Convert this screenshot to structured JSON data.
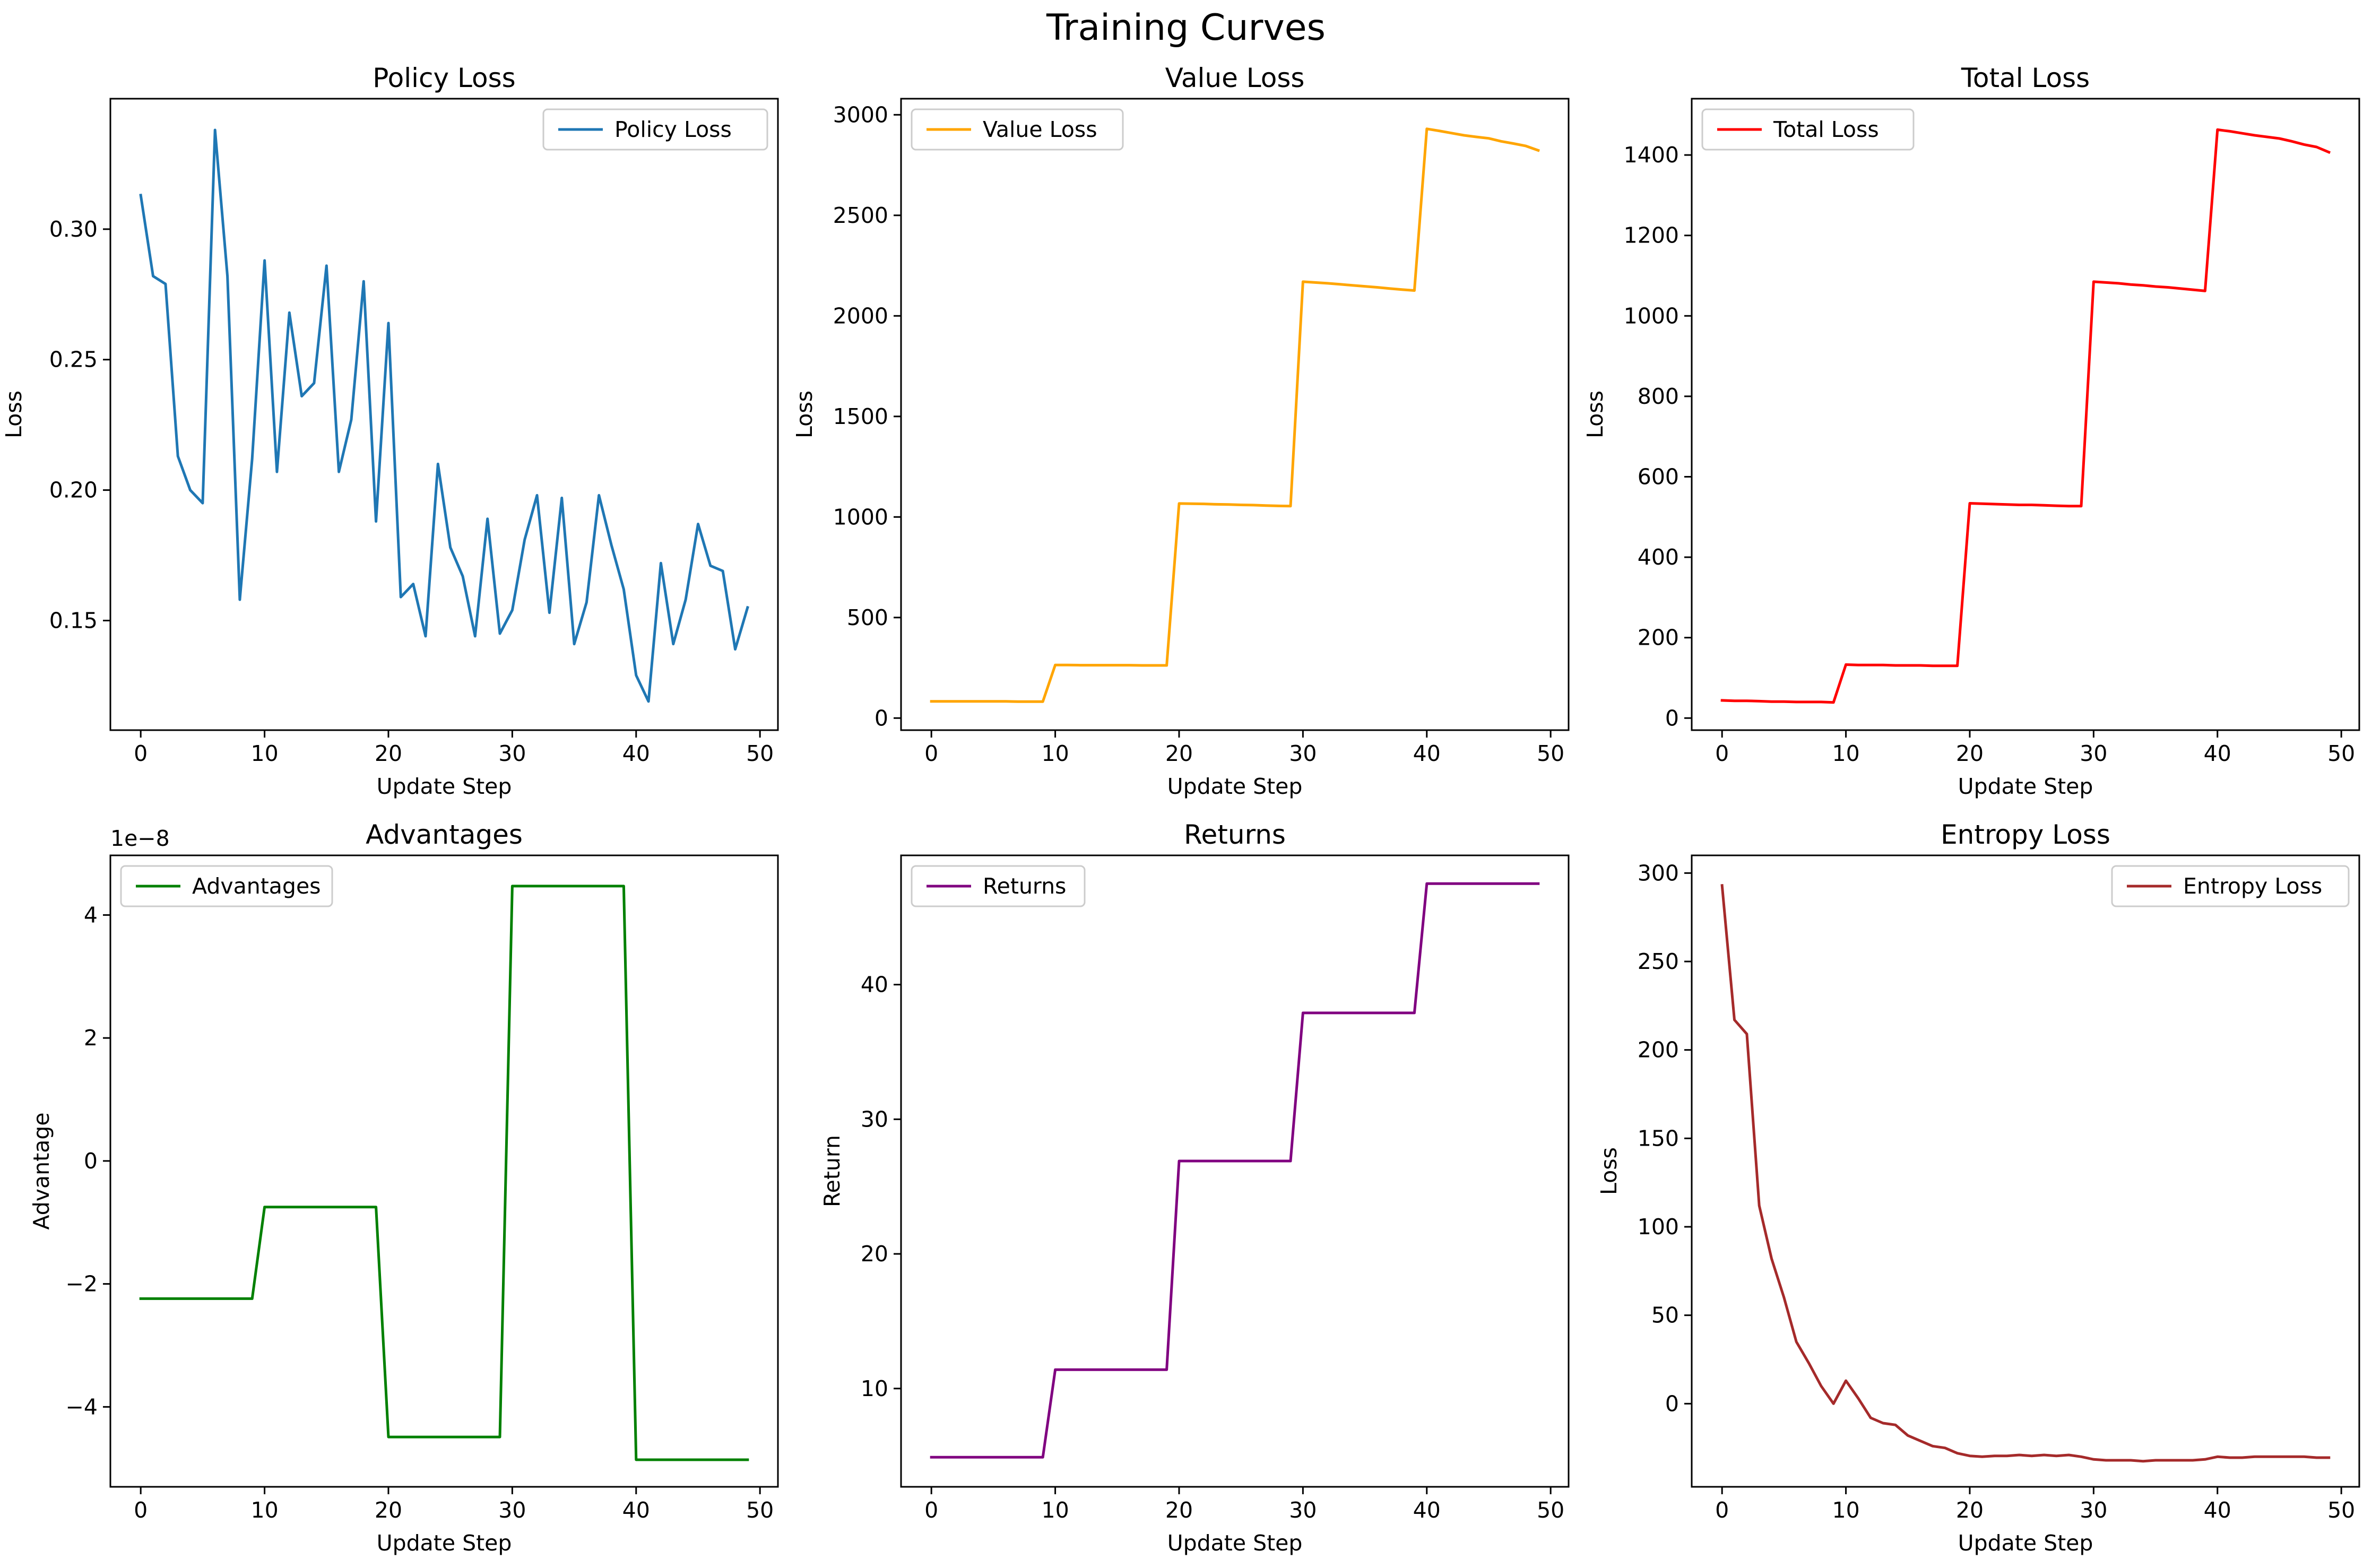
{
  "figure": {
    "title": "Training Curves"
  },
  "chart_data": [
    {
      "type": "line",
      "title": "Policy Loss",
      "xlabel": "Update Step",
      "ylabel": "Loss",
      "xlim": [
        -2.45,
        51.45
      ],
      "ylim": [
        0.108,
        0.35
      ],
      "xticks": [
        0,
        10,
        20,
        30,
        40,
        50
      ],
      "yticks": [
        0.15,
        0.2,
        0.25,
        0.3
      ],
      "ytick_labels": [
        "0.15",
        "0.20",
        "0.25",
        "0.30"
      ],
      "legend": "upper right",
      "series": [
        {
          "name": "Policy Loss",
          "color": "#1f77b4",
          "x": [
            0,
            1,
            2,
            3,
            4,
            5,
            6,
            7,
            8,
            9,
            10,
            11,
            12,
            13,
            14,
            15,
            16,
            17,
            18,
            19,
            20,
            21,
            22,
            23,
            24,
            25,
            26,
            27,
            28,
            29,
            30,
            31,
            32,
            33,
            34,
            35,
            36,
            37,
            38,
            39,
            40,
            41,
            42,
            43,
            44,
            45,
            46,
            47,
            48,
            49
          ],
          "values": [
            0.313,
            0.282,
            0.279,
            0.213,
            0.2,
            0.195,
            0.338,
            0.282,
            0.158,
            0.212,
            0.288,
            0.207,
            0.268,
            0.236,
            0.241,
            0.286,
            0.207,
            0.227,
            0.28,
            0.188,
            0.264,
            0.159,
            0.164,
            0.144,
            0.21,
            0.178,
            0.167,
            0.144,
            0.189,
            0.145,
            0.154,
            0.181,
            0.198,
            0.153,
            0.197,
            0.141,
            0.157,
            0.198,
            0.179,
            0.162,
            0.129,
            0.119,
            0.172,
            0.141,
            0.158,
            0.187,
            0.171,
            0.169,
            0.139,
            0.155
          ]
        }
      ]
    },
    {
      "type": "line",
      "title": "Value Loss",
      "xlabel": "Update Step",
      "ylabel": "Loss",
      "xlim": [
        -2.45,
        51.45
      ],
      "ylim": [
        -60,
        3080
      ],
      "xticks": [
        0,
        10,
        20,
        30,
        40,
        50
      ],
      "yticks": [
        0,
        500,
        1000,
        1500,
        2000,
        2500,
        3000
      ],
      "ytick_labels": [
        "0",
        "500",
        "1000",
        "1500",
        "2000",
        "2500",
        "3000"
      ],
      "legend": "upper left",
      "series": [
        {
          "name": "Value Loss",
          "color": "#ffa500",
          "x": [
            0,
            1,
            2,
            3,
            4,
            5,
            6,
            7,
            8,
            9,
            10,
            11,
            12,
            13,
            14,
            15,
            16,
            17,
            18,
            19,
            20,
            21,
            22,
            23,
            24,
            25,
            26,
            27,
            28,
            29,
            30,
            31,
            32,
            33,
            34,
            35,
            36,
            37,
            38,
            39,
            40,
            41,
            42,
            43,
            44,
            45,
            46,
            47,
            48,
            49
          ],
          "values": [
            83,
            83,
            83,
            83,
            83,
            83,
            83,
            82,
            82,
            82,
            264,
            264,
            263,
            263,
            263,
            263,
            263,
            262,
            262,
            262,
            1067,
            1066,
            1065,
            1063,
            1062,
            1060,
            1059,
            1057,
            1055,
            1054,
            2170,
            2166,
            2162,
            2157,
            2152,
            2147,
            2142,
            2136,
            2131,
            2126,
            2930,
            2920,
            2909,
            2898,
            2890,
            2883,
            2868,
            2857,
            2845,
            2823
          ]
        }
      ]
    },
    {
      "type": "line",
      "title": "Total Loss",
      "xlabel": "Update Step",
      "ylabel": "Loss",
      "xlim": [
        -2.45,
        51.45
      ],
      "ylim": [
        -30,
        1540
      ],
      "xticks": [
        0,
        10,
        20,
        30,
        40,
        50
      ],
      "yticks": [
        0,
        200,
        400,
        600,
        800,
        1000,
        1200,
        1400
      ],
      "ytick_labels": [
        "0",
        "200",
        "400",
        "600",
        "800",
        "1000",
        "1200",
        "1400"
      ],
      "legend": "upper left",
      "series": [
        {
          "name": "Total Loss",
          "color": "#ff0000",
          "x": [
            0,
            1,
            2,
            3,
            4,
            5,
            6,
            7,
            8,
            9,
            10,
            11,
            12,
            13,
            14,
            15,
            16,
            17,
            18,
            19,
            20,
            21,
            22,
            23,
            24,
            25,
            26,
            27,
            28,
            29,
            30,
            31,
            32,
            33,
            34,
            35,
            36,
            37,
            38,
            39,
            40,
            41,
            42,
            43,
            44,
            45,
            46,
            47,
            48,
            49
          ],
          "values": [
            44,
            43,
            43,
            42,
            41,
            41,
            40,
            40,
            40,
            39,
            133,
            132,
            132,
            132,
            131,
            131,
            131,
            130,
            130,
            130,
            534,
            533,
            532,
            531,
            530,
            530,
            529,
            528,
            527,
            527,
            1085,
            1083,
            1081,
            1078,
            1076,
            1073,
            1071,
            1068,
            1065,
            1062,
            1463,
            1459,
            1454,
            1449,
            1445,
            1441,
            1434,
            1426,
            1420,
            1407
          ]
        }
      ]
    },
    {
      "type": "line",
      "title": "Advantages",
      "xlabel": "Update Step",
      "ylabel": "Advantage",
      "offset_text": "1e−8",
      "xlim": [
        -2.45,
        51.45
      ],
      "ylim": [
        -5.3,
        4.97
      ],
      "xticks": [
        0,
        10,
        20,
        30,
        40,
        50
      ],
      "yticks": [
        -4,
        -2,
        0,
        2,
        4
      ],
      "ytick_labels": [
        "−4",
        "−2",
        "0",
        "2",
        "4"
      ],
      "legend": "upper left",
      "series": [
        {
          "name": "Advantages",
          "color": "#008000",
          "x": [
            0,
            1,
            2,
            3,
            4,
            5,
            6,
            7,
            8,
            9,
            10,
            11,
            12,
            13,
            14,
            15,
            16,
            17,
            18,
            19,
            20,
            21,
            22,
            23,
            24,
            25,
            26,
            27,
            28,
            29,
            30,
            31,
            32,
            33,
            34,
            35,
            36,
            37,
            38,
            39,
            40,
            41,
            42,
            43,
            44,
            45,
            46,
            47,
            48,
            49
          ],
          "values": [
            -2.24,
            -2.24,
            -2.24,
            -2.24,
            -2.24,
            -2.24,
            -2.24,
            -2.24,
            -2.24,
            -2.24,
            -0.75,
            -0.75,
            -0.75,
            -0.75,
            -0.75,
            -0.75,
            -0.75,
            -0.75,
            -0.75,
            -0.75,
            -4.49,
            -4.49,
            -4.49,
            -4.49,
            -4.49,
            -4.49,
            -4.49,
            -4.49,
            -4.49,
            -4.49,
            4.47,
            4.47,
            4.47,
            4.47,
            4.47,
            4.47,
            4.47,
            4.47,
            4.47,
            4.47,
            -4.86,
            -4.86,
            -4.86,
            -4.86,
            -4.86,
            -4.86,
            -4.86,
            -4.86,
            -4.86,
            -4.86
          ]
        }
      ]
    },
    {
      "type": "line",
      "title": "Returns",
      "xlabel": "Update Step",
      "ylabel": "Return",
      "xlim": [
        -2.45,
        51.45
      ],
      "ylim": [
        2.7,
        49.6
      ],
      "xticks": [
        0,
        10,
        20,
        30,
        40,
        50
      ],
      "yticks": [
        10,
        20,
        30,
        40
      ],
      "ytick_labels": [
        "10",
        "20",
        "30",
        "40"
      ],
      "legend": "upper left",
      "series": [
        {
          "name": "Returns",
          "color": "#800080",
          "x": [
            0,
            1,
            2,
            3,
            4,
            5,
            6,
            7,
            8,
            9,
            10,
            11,
            12,
            13,
            14,
            15,
            16,
            17,
            18,
            19,
            20,
            21,
            22,
            23,
            24,
            25,
            26,
            27,
            28,
            29,
            30,
            31,
            32,
            33,
            34,
            35,
            36,
            37,
            38,
            39,
            40,
            41,
            42,
            43,
            44,
            45,
            46,
            47,
            48,
            49
          ],
          "values": [
            4.9,
            4.9,
            4.9,
            4.9,
            4.9,
            4.9,
            4.9,
            4.9,
            4.9,
            4.9,
            11.4,
            11.4,
            11.4,
            11.4,
            11.4,
            11.4,
            11.4,
            11.4,
            11.4,
            11.4,
            26.9,
            26.9,
            26.9,
            26.9,
            26.9,
            26.9,
            26.9,
            26.9,
            26.9,
            26.9,
            37.9,
            37.9,
            37.9,
            37.9,
            37.9,
            37.9,
            37.9,
            37.9,
            37.9,
            37.9,
            47.5,
            47.5,
            47.5,
            47.5,
            47.5,
            47.5,
            47.5,
            47.5,
            47.5,
            47.5
          ]
        }
      ]
    },
    {
      "type": "line",
      "title": "Entropy Loss",
      "xlabel": "Update Step",
      "ylabel": "Loss",
      "xlim": [
        -2.45,
        51.45
      ],
      "ylim": [
        -47,
        310
      ],
      "xticks": [
        0,
        10,
        20,
        30,
        40,
        50
      ],
      "yticks": [
        0,
        50,
        100,
        150,
        200,
        250,
        300
      ],
      "ytick_labels": [
        "0",
        "50",
        "100",
        "150",
        "200",
        "250",
        "300"
      ],
      "legend": "upper right",
      "series": [
        {
          "name": "Entropy Loss",
          "color": "#a52a2a",
          "x": [
            0,
            1,
            2,
            3,
            4,
            5,
            6,
            7,
            8,
            9,
            10,
            11,
            12,
            13,
            14,
            15,
            16,
            17,
            18,
            19,
            20,
            21,
            22,
            23,
            24,
            25,
            26,
            27,
            28,
            29,
            30,
            31,
            32,
            33,
            34,
            35,
            36,
            37,
            38,
            39,
            40,
            41,
            42,
            43,
            44,
            45,
            46,
            47,
            48,
            49
          ],
          "values": [
            293,
            217,
            209,
            112,
            82,
            60,
            35,
            23,
            10,
            0,
            13,
            3,
            -8,
            -11,
            -12,
            -18,
            -21,
            -24,
            -25,
            -28,
            -29.5,
            -30,
            -29.5,
            -29.5,
            -29,
            -29.5,
            -29,
            -29.5,
            -29,
            -30,
            -31.5,
            -32,
            -32,
            -32,
            -32.5,
            -32,
            -32,
            -32,
            -32,
            -31.5,
            -30,
            -30.5,
            -30.5,
            -30,
            -30,
            -30,
            -30,
            -30,
            -30.5,
            -30.5
          ]
        }
      ]
    }
  ]
}
